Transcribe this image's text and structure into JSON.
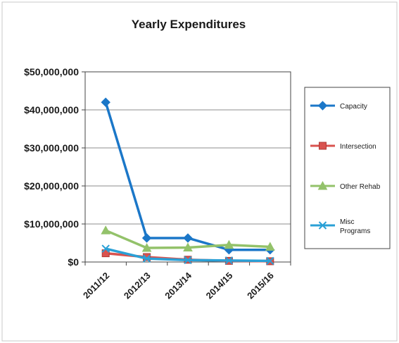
{
  "chart_data": {
    "type": "line",
    "title": "Yearly Expenditures",
    "xlabel": "",
    "ylabel": "",
    "categories": [
      "2011/12",
      "2012/13",
      "2013/14",
      "2014/15",
      "2015/16"
    ],
    "ylim": [
      0,
      50000000
    ],
    "yticks": [
      {
        "value": 0,
        "label": "$0"
      },
      {
        "value": 10000000,
        "label": "$10,000,000"
      },
      {
        "value": 20000000,
        "label": "$20,000,000"
      },
      {
        "value": 30000000,
        "label": "$30,000,000"
      },
      {
        "value": 40000000,
        "label": "$40,000,000"
      },
      {
        "value": 50000000,
        "label": "$50,000,000"
      }
    ],
    "grid": true,
    "legend_position": "right",
    "series": [
      {
        "name": "Capacity",
        "color": "#1b77c8",
        "marker": "diamond",
        "values": [
          42000000,
          6300000,
          6300000,
          3200000,
          3200000
        ]
      },
      {
        "name": "Intersection",
        "color": "#d9534f",
        "marker": "square",
        "values": [
          2300000,
          1300000,
          600000,
          300000,
          200000
        ]
      },
      {
        "name": "Other Rehab",
        "color": "#93c26a",
        "marker": "triangle",
        "values": [
          8300000,
          3700000,
          3800000,
          4500000,
          4000000
        ]
      },
      {
        "name": "Misc Programs",
        "color": "#2aa0d6",
        "marker": "x",
        "values": [
          3500000,
          900000,
          500000,
          400000,
          300000
        ]
      }
    ]
  }
}
